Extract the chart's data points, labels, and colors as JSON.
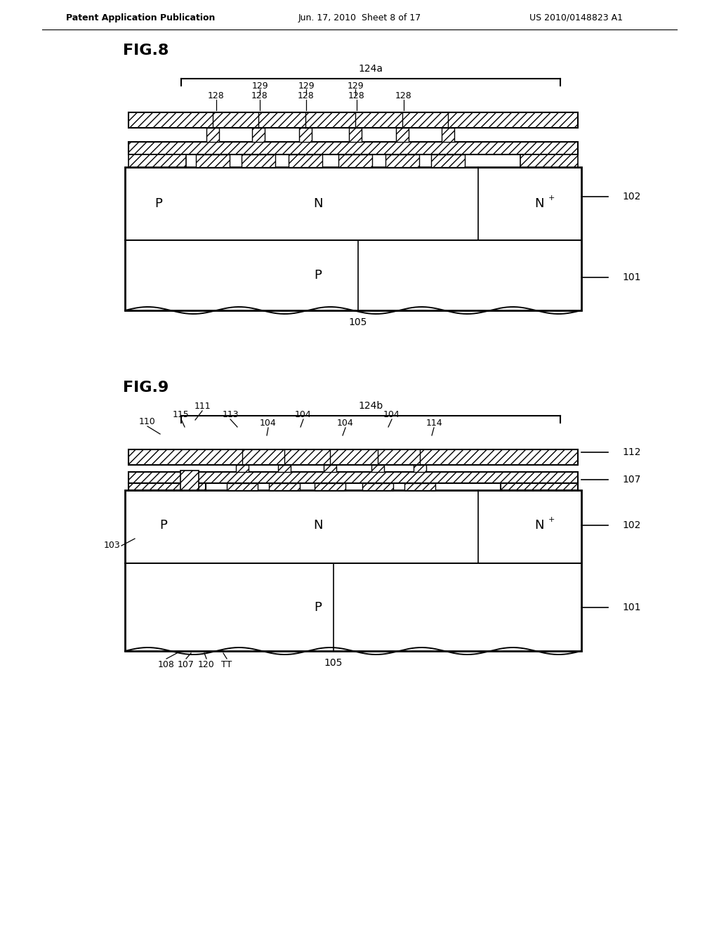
{
  "bg_color": "#ffffff",
  "header_left": "Patent Application Publication",
  "header_center": "Jun. 17, 2010  Sheet 8 of 17",
  "header_right": "US 2010/0148823 A1",
  "fig8_title": "FIG.8",
  "fig9_title": "FIG.9"
}
